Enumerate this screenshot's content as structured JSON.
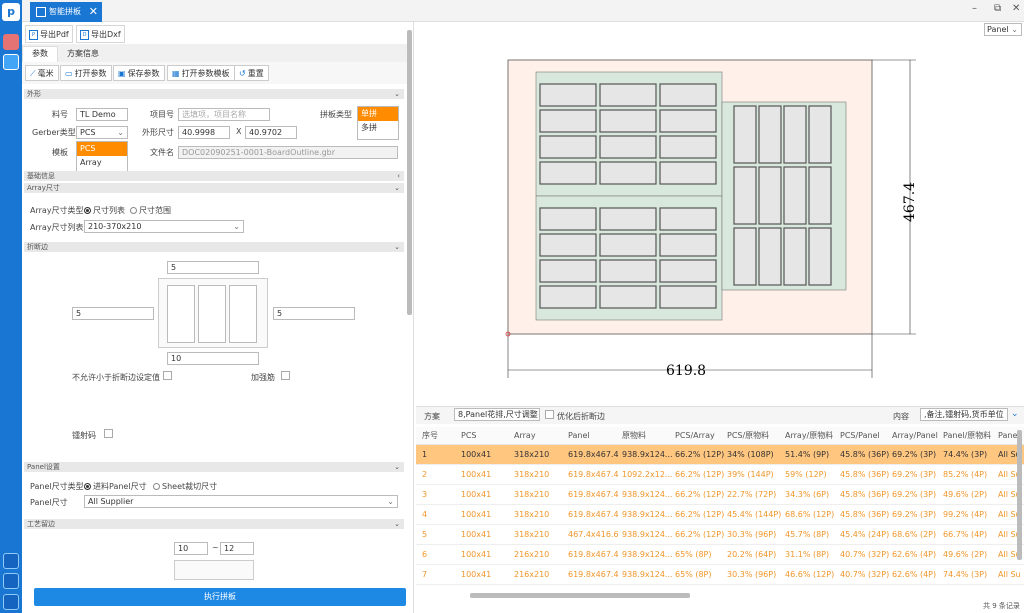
{
  "app": {
    "tab_title": "智能拼板",
    "tab_close": "✕"
  },
  "window_controls": [
    "–",
    "⧉",
    "✕"
  ],
  "export": {
    "pdf": "导出Pdf",
    "dxf": "导出Dxf"
  },
  "subtabs": [
    "参数",
    "方案信息"
  ],
  "toolbar": {
    "mm": "毫米",
    "open": "打开参数",
    "save": "保存参数",
    "open_template": "打开参数模板",
    "reset": "重置"
  },
  "sections": {
    "outline": "外形",
    "basic": "基础信息",
    "array_size": "Array尺寸",
    "break_edge": "折断边",
    "panel_setting": "Panel设置",
    "process_edge": "工艺留边"
  },
  "form": {
    "part_no_label": "料号",
    "part_no": "TL Demo",
    "project_label": "项目号",
    "project_placeholder": "选填项，项目名称",
    "panel_type_label": "拼板类型",
    "panel_type_options": [
      "单拼",
      "多拼"
    ],
    "panel_type_selected": "单拼",
    "gerber_label": "Gerber类型",
    "gerber_value": "PCS",
    "gerber_options": [
      "PCS",
      "Array"
    ],
    "outline_size_label": "外形尺寸",
    "width": "40.9998",
    "x_sep": "X",
    "height": "40.9702",
    "template_label": "模板",
    "file_label": "文件名",
    "file_name": "DOC02090251-0001-BoardOutline.gbr",
    "array_type_label": "Array尺寸类型",
    "array_type_opt1": "尺寸列表",
    "array_type_opt2": "尺寸范围",
    "array_list_label": "Array尺寸列表",
    "array_list_value": "210-370x210",
    "edge_top": "5",
    "edge_left": "5",
    "edge_right": "5",
    "edge_bottom": "10",
    "no_smaller_label": "不允许小于折断边设定值",
    "stiffener_label": "加强筋",
    "laser_label": "镭射码",
    "panel_type2_label": "Panel尺寸类型",
    "panel_opt1": "进料Panel尺寸",
    "panel_opt2": "Sheet裁切尺寸",
    "panel_size_label": "Panel尺寸",
    "panel_size_value": "All Supplier",
    "process_min": "10",
    "process_sep": "~",
    "process_max": "12"
  },
  "run_button": "执行拼板",
  "preview": {
    "view_select": "Panel",
    "dim_width": "619.8",
    "dim_height": "467.4"
  },
  "options": {
    "scheme_label": "方案",
    "scheme_value": "8,Panel花排,尺寸调整",
    "optimize_label": "优化后折断边",
    "content_label": "内容",
    "content_value": ",备注,镭射码,货币单位"
  },
  "table": {
    "headers": [
      "序号",
      "PCS",
      "Array",
      "Panel",
      "原物料",
      "PCS/Array",
      "PCS/原物料",
      "Array/原物料",
      "PCS/Panel",
      "Array/Panel",
      "Panel/原物料",
      "Panel"
    ],
    "rows": [
      [
        "1",
        "100x41",
        "318x210",
        "619.8x467.4",
        "938.9x124...",
        "66.2% (12P)",
        "34% (108P)",
        "51.4% (9P)",
        "45.8% (36P)",
        "69.2% (3P)",
        "74.4% (3P)",
        "All Su"
      ],
      [
        "2",
        "100x41",
        "318x210",
        "619.8x467.4",
        "1092.2x12...",
        "66.2% (12P)",
        "39% (144P)",
        "59% (12P)",
        "45.8% (36P)",
        "69.2% (3P)",
        "85.2% (4P)",
        "All Su"
      ],
      [
        "3",
        "100x41",
        "318x210",
        "619.8x467.4",
        "938.9x124...",
        "66.2% (12P)",
        "22.7% (72P)",
        "34.3% (6P)",
        "45.8% (36P)",
        "69.2% (3P)",
        "49.6% (2P)",
        "All Su"
      ],
      [
        "4",
        "100x41",
        "318x210",
        "619.8x467.4",
        "938.9x124...",
        "66.2% (12P)",
        "45.4% (144P)",
        "68.6% (12P)",
        "45.8% (36P)",
        "69.2% (3P)",
        "99.2% (4P)",
        "All Su"
      ],
      [
        "5",
        "100x41",
        "318x210",
        "467.4x416.6",
        "938.9x124...",
        "66.2% (12P)",
        "30.3% (96P)",
        "45.7% (8P)",
        "45.4% (24P)",
        "68.6% (2P)",
        "66.7% (4P)",
        "All Su"
      ],
      [
        "6",
        "100x41",
        "216x210",
        "619.8x467.4",
        "938.9x124...",
        "65% (8P)",
        "20.2% (64P)",
        "31.1% (8P)",
        "40.7% (32P)",
        "62.6% (4P)",
        "49.6% (2P)",
        "All Su"
      ],
      [
        "7",
        "100x41",
        "216x210",
        "619.8x467.4",
        "938.9x124...",
        "65% (8P)",
        "30.3% (96P)",
        "46.6% (12P)",
        "40.7% (32P)",
        "62.6% (4P)",
        "74.4% (3P)",
        "All Su"
      ]
    ]
  },
  "footer": {
    "total": "共 9 条记录"
  },
  "colors": {
    "accent": "#1976d2",
    "selected_row": "#ffc680",
    "orange_text": "#f0962a"
  }
}
